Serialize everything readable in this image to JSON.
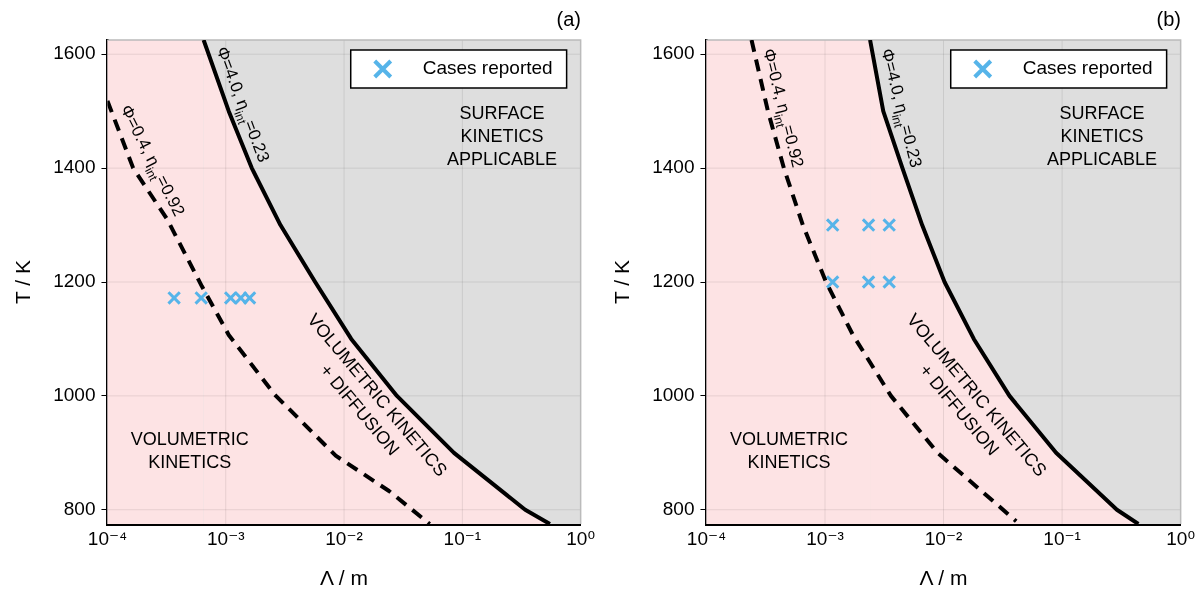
{
  "chart_data": [
    {
      "type": "line",
      "title": "(a)",
      "xlabel": "Λ / m",
      "ylabel": "T / K",
      "log": "x",
      "grid": true,
      "legend": "top right",
      "xlim": [
        0.0001,
        1
      ],
      "xticks": [
        {
          "value": 0.0001,
          "label": "10⁻⁴"
        },
        {
          "value": 0.001,
          "label": "10⁻³"
        },
        {
          "value": 0.01,
          "label": "10⁻²"
        },
        {
          "value": 0.1,
          "label": "10⁻¹"
        },
        {
          "value": 1,
          "label": "10⁰"
        }
      ],
      "ylim": [
        775,
        1625
      ],
      "yticks": [
        800,
        1000,
        1200,
        1400,
        1600
      ],
      "annotations": [
        "SURFACE\nKINETICS\nAPPLICABLE",
        "VOLUMETRIC\nKINETICS",
        "VOLUMETRIC KINETICS\n+ DIFFUSION"
      ],
      "bands": [
        {
          "axis": "x",
          "from": 0.0001,
          "to": 0.00065,
          "color": "#fde3e4"
        }
      ],
      "series": [
        {
          "type": "area",
          "name": "Φ=4.0, η$_{int}$=0.23",
          "color": "#000000",
          "line_style": "solid",
          "x": [
            0.00065,
            0.00106,
            0.00166,
            0.0029,
            0.0057,
            0.0115,
            0.028,
            0.085,
            0.34,
            0.55
          ],
          "values": [
            1625,
            1500,
            1400,
            1300,
            1200,
            1100,
            1000,
            900,
            800,
            775
          ]
        },
        {
          "name": "Φ=0.4, η$_{int}$=0.92",
          "color": "#000000",
          "line_style": "dashed",
          "x": [
            0.0001,
            0.000165,
            0.00032,
            0.00063,
            0.00106,
            0.0026,
            0.0085,
            0.024,
            0.053
          ],
          "values": [
            1518,
            1400,
            1310,
            1192,
            1107,
            1002,
            895,
            833,
            775
          ]
        },
        {
          "type": "scatter",
          "name": "Cases reported",
          "color": "#56b4e9",
          "marker": "cross",
          "x": [
            0.000366,
            0.00062,
            0.0011,
            0.00134,
            0.00159
          ],
          "values": [
            1172,
            1172,
            1172,
            1172,
            1172
          ]
        }
      ]
    },
    {
      "type": "line",
      "title": "(b)",
      "xlabel": "Λ / m",
      "ylabel": "T / K",
      "log": "x",
      "grid": true,
      "legend": "top right",
      "xlim": [
        0.0001,
        1
      ],
      "xticks": [
        {
          "value": 0.0001,
          "label": "10⁻⁴"
        },
        {
          "value": 0.001,
          "label": "10⁻³"
        },
        {
          "value": 0.01,
          "label": "10⁻²"
        },
        {
          "value": 0.1,
          "label": "10⁻¹"
        },
        {
          "value": 1,
          "label": "10⁰"
        }
      ],
      "ylim": [
        775,
        1625
      ],
      "yticks": [
        800,
        1000,
        1200,
        1400,
        1600
      ],
      "annotations": [
        "SURFACE\nKINETICS\nAPPLICABLE",
        "VOLUMETRIC\nKINETICS",
        "VOLUMETRIC KINETICS\n+ DIFFUSION"
      ],
      "bands": [
        {
          "axis": "x",
          "from": 0.0001,
          "to": 0.0024,
          "color": "#fde3e4"
        }
      ],
      "series": [
        {
          "type": "area",
          "name": "Φ=4.0, η$_{int}$=0.23",
          "color": "#000000",
          "line_style": "solid",
          "x": [
            0.0024,
            0.0031,
            0.0045,
            0.0066,
            0.0102,
            0.018,
            0.036,
            0.089,
            0.29,
            0.44
          ],
          "values": [
            1625,
            1500,
            1400,
            1300,
            1200,
            1100,
            1000,
            900,
            800,
            775
          ]
        },
        {
          "name": "Φ=0.4, η$_{int}$=0.92",
          "color": "#000000",
          "line_style": "dashed",
          "x": [
            0.00024,
            0.00033,
            0.00045,
            0.00065,
            0.00102,
            0.00172,
            0.0036,
            0.0089,
            0.041
          ],
          "values": [
            1625,
            1500,
            1400,
            1300,
            1200,
            1107,
            1000,
            900,
            780
          ]
        },
        {
          "type": "scatter",
          "name": "Cases reported",
          "color": "#56b4e9",
          "marker": "cross",
          "x": [
            0.00116,
            0.00233,
            0.00348,
            0.00116,
            0.00233,
            0.00348
          ],
          "values": [
            1300,
            1300,
            1300,
            1200,
            1200,
            1200
          ]
        }
      ]
    }
  ]
}
